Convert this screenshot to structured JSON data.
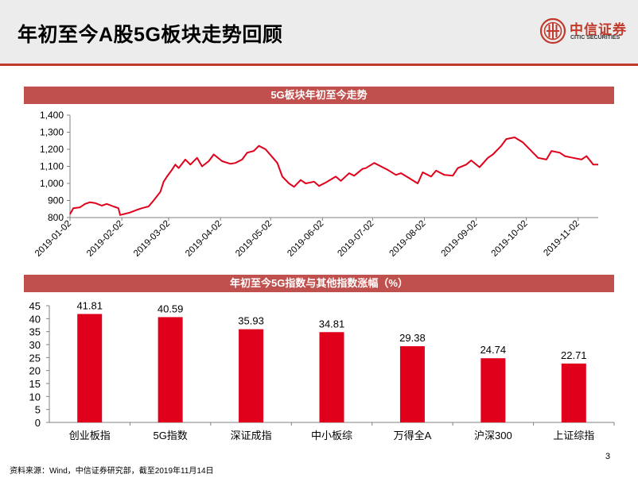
{
  "page": {
    "title": "年初至今A股5G板块走势回顾",
    "logo_cn": "中信证券",
    "logo_en": "CITIC SECURITIES",
    "source": "资料来源：Wind，中信证券研究部，截至2019年11月14日",
    "page_number": "3",
    "accent_color": "#c0392b",
    "banner_color": "#c0504d"
  },
  "chart_data": [
    {
      "type": "line",
      "title": "5G板块年初至今走势",
      "ylim": [
        800,
        1400
      ],
      "y_ticks": [
        "800",
        "900",
        "1,000",
        "1,100",
        "1,200",
        "1,300",
        "1,400"
      ],
      "x_ticks": [
        "2019-01-02",
        "2019-02-02",
        "2019-03-02",
        "2019-04-02",
        "2019-05-02",
        "2019-06-02",
        "2019-07-02",
        "2019-08-02",
        "2019-09-02",
        "2019-10-02",
        "2019-11-02"
      ],
      "color": "#e0001b",
      "series": [
        {
          "x": [
            "2019-01-02",
            "2019-01-04",
            "2019-01-08",
            "2019-01-11",
            "2019-01-14",
            "2019-01-17",
            "2019-01-21",
            "2019-01-24",
            "2019-01-28",
            "2019-01-31",
            "2019-02-01",
            "2019-02-07",
            "2019-02-11",
            "2019-02-14",
            "2019-02-18",
            "2019-02-21",
            "2019-02-25",
            "2019-02-27",
            "2019-03-01",
            "2019-03-04",
            "2019-03-06",
            "2019-03-08",
            "2019-03-12",
            "2019-03-15",
            "2019-03-19",
            "2019-03-22",
            "2019-03-26",
            "2019-03-29",
            "2019-04-03",
            "2019-04-08",
            "2019-04-11",
            "2019-04-15",
            "2019-04-18",
            "2019-04-22",
            "2019-04-25",
            "2019-04-29",
            "2019-05-06",
            "2019-05-09",
            "2019-05-13",
            "2019-05-16",
            "2019-05-20",
            "2019-05-23",
            "2019-05-28",
            "2019-05-31",
            "2019-06-04",
            "2019-06-10",
            "2019-06-13",
            "2019-06-18",
            "2019-06-21",
            "2019-06-26",
            "2019-06-28",
            "2019-07-03",
            "2019-07-08",
            "2019-07-11",
            "2019-07-16",
            "2019-07-19",
            "2019-07-24",
            "2019-07-29",
            "2019-08-01",
            "2019-08-06",
            "2019-08-09",
            "2019-08-14",
            "2019-08-19",
            "2019-08-22",
            "2019-08-27",
            "2019-08-30",
            "2019-09-04",
            "2019-09-09",
            "2019-09-12",
            "2019-09-17",
            "2019-09-20",
            "2019-09-25",
            "2019-09-30",
            "2019-10-09",
            "2019-10-14",
            "2019-10-17",
            "2019-10-22",
            "2019-10-25",
            "2019-10-30",
            "2019-11-04",
            "2019-11-07",
            "2019-11-11",
            "2019-11-14"
          ],
          "values": [
            820,
            855,
            860,
            880,
            890,
            885,
            870,
            880,
            865,
            855,
            815,
            830,
            845,
            855,
            865,
            900,
            950,
            1010,
            1040,
            1080,
            1110,
            1090,
            1140,
            1110,
            1150,
            1100,
            1130,
            1170,
            1130,
            1115,
            1120,
            1140,
            1180,
            1190,
            1220,
            1200,
            1120,
            1040,
            1000,
            980,
            1020,
            1000,
            1010,
            985,
            1005,
            1040,
            1015,
            1060,
            1045,
            1085,
            1090,
            1120,
            1095,
            1080,
            1050,
            1060,
            1030,
            1000,
            1065,
            1040,
            1075,
            1050,
            1045,
            1090,
            1110,
            1135,
            1095,
            1150,
            1170,
            1220,
            1260,
            1270,
            1240,
            1150,
            1140,
            1190,
            1180,
            1160,
            1150,
            1140,
            1160,
            1110,
            1110
          ]
        }
      ]
    },
    {
      "type": "bar",
      "title": "年初至今5G指数与其他指数涨幅（%）",
      "ylim": [
        0,
        45
      ],
      "y_ticks": [
        "0",
        "5",
        "10",
        "15",
        "20",
        "25",
        "30",
        "35",
        "40",
        "45"
      ],
      "color": "#e0001b",
      "categories": [
        "创业板指",
        "5G指数",
        "深证成指",
        "中小板综",
        "万得全A",
        "沪深300",
        "上证综指"
      ],
      "values": [
        41.81,
        40.59,
        35.93,
        34.81,
        29.38,
        24.74,
        22.71
      ],
      "labels": [
        "41.81",
        "40.59",
        "35.93",
        "34.81",
        "29.38",
        "24.74",
        "22.71"
      ]
    }
  ]
}
